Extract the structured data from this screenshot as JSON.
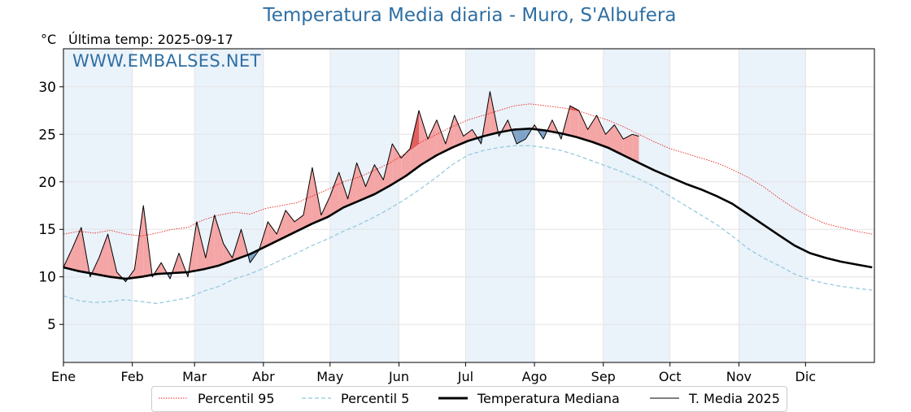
{
  "title": "Temperatura Media diaria - Muro, S'Albufera",
  "unit_label": "°C",
  "last_update": "Última temp: 2025-09-17",
  "watermark": "WWW.EMBALSES.NET",
  "legend": {
    "p95": "Percentil 95",
    "p5": "Percentil 5",
    "median": "Temperatura Mediana",
    "current": "T. Media 2025"
  },
  "colors": {
    "p95": "#e8281e",
    "p5": "#8fc8dc",
    "median": "#000000",
    "current": "#000000",
    "above_fill": "#f4a5a5",
    "above_strong": "#e06060",
    "below_fill": "#7fa3c8",
    "below_strong": "#2a5a90",
    "band": "#eaf2fa",
    "title": "#2f6fa3"
  },
  "chart_data": {
    "type": "line",
    "title": "Temperatura Media diaria - Muro, S'Albufera",
    "ylabel": "°C",
    "xlabel": "",
    "ylim": [
      1,
      34
    ],
    "xlim": [
      1,
      366
    ],
    "yticks": [
      5,
      10,
      15,
      20,
      25,
      30
    ],
    "month_ticks": [
      {
        "day": 1,
        "label": "Ene"
      },
      {
        "day": 32,
        "label": "Feb"
      },
      {
        "day": 60,
        "label": "Mar"
      },
      {
        "day": 91,
        "label": "Abr"
      },
      {
        "day": 121,
        "label": "May"
      },
      {
        "day": 152,
        "label": "Jun"
      },
      {
        "day": 182,
        "label": "Jul"
      },
      {
        "day": 213,
        "label": "Ago"
      },
      {
        "day": 244,
        "label": "Sep"
      },
      {
        "day": 274,
        "label": "Oct"
      },
      {
        "day": 305,
        "label": "Nov"
      },
      {
        "day": 335,
        "label": "Dic"
      }
    ],
    "alternating_month_shading": true,
    "grid": true,
    "legend_position": "bottom",
    "series": [
      {
        "name": "Percentil 95",
        "style": "dotted-red",
        "x": [
          1,
          8,
          15,
          22,
          29,
          36,
          43,
          50,
          57,
          64,
          71,
          78,
          85,
          92,
          99,
          106,
          113,
          120,
          127,
          134,
          141,
          148,
          155,
          162,
          169,
          176,
          183,
          190,
          197,
          204,
          211,
          218,
          225,
          232,
          239,
          246,
          253,
          260,
          267,
          274,
          281,
          288,
          295,
          302,
          309,
          316,
          323,
          330,
          337,
          344,
          351,
          358,
          365
        ],
        "y": [
          14.5,
          14.8,
          14.6,
          14.9,
          14.5,
          14.3,
          14.6,
          15.0,
          15.2,
          16.0,
          16.5,
          16.8,
          16.6,
          17.2,
          17.5,
          17.8,
          18.5,
          19.2,
          20.0,
          20.5,
          21.2,
          22.0,
          23.0,
          24.2,
          25.0,
          25.8,
          26.5,
          27.0,
          27.5,
          28.0,
          28.2,
          28.0,
          27.8,
          27.5,
          27.0,
          26.5,
          25.8,
          25.0,
          24.2,
          23.5,
          23.0,
          22.5,
          22.0,
          21.3,
          20.5,
          19.5,
          18.3,
          17.2,
          16.3,
          15.6,
          15.2,
          14.8,
          14.5
        ]
      },
      {
        "name": "Percentil 5",
        "style": "dashed-lightblue",
        "x": [
          1,
          8,
          15,
          22,
          29,
          36,
          43,
          50,
          57,
          64,
          71,
          78,
          85,
          92,
          99,
          106,
          113,
          120,
          127,
          134,
          141,
          148,
          155,
          162,
          169,
          176,
          183,
          190,
          197,
          204,
          211,
          218,
          225,
          232,
          239,
          246,
          253,
          260,
          267,
          274,
          281,
          288,
          295,
          302,
          309,
          316,
          323,
          330,
          337,
          344,
          351,
          358,
          365
        ],
        "y": [
          8.0,
          7.5,
          7.3,
          7.4,
          7.6,
          7.4,
          7.2,
          7.5,
          7.8,
          8.5,
          9.0,
          9.8,
          10.3,
          11.0,
          11.8,
          12.5,
          13.3,
          14.0,
          14.8,
          15.5,
          16.3,
          17.2,
          18.2,
          19.3,
          20.5,
          21.8,
          22.8,
          23.3,
          23.6,
          23.8,
          23.8,
          23.6,
          23.3,
          22.8,
          22.2,
          21.6,
          21.0,
          20.3,
          19.5,
          18.5,
          17.5,
          16.5,
          15.5,
          14.3,
          13.0,
          12.0,
          11.2,
          10.3,
          9.7,
          9.3,
          9.0,
          8.8,
          8.6
        ]
      },
      {
        "name": "Temperatura Mediana",
        "style": "thick-black",
        "x": [
          1,
          8,
          15,
          22,
          29,
          36,
          43,
          50,
          57,
          64,
          71,
          78,
          85,
          92,
          99,
          106,
          113,
          120,
          127,
          134,
          141,
          148,
          155,
          162,
          169,
          176,
          183,
          190,
          197,
          204,
          211,
          218,
          225,
          232,
          239,
          246,
          253,
          260,
          267,
          274,
          281,
          288,
          295,
          302,
          309,
          316,
          323,
          330,
          337,
          344,
          351,
          358,
          365
        ],
        "y": [
          11.0,
          10.6,
          10.3,
          10.0,
          9.8,
          10.0,
          10.3,
          10.4,
          10.5,
          10.8,
          11.2,
          11.8,
          12.4,
          13.2,
          14.0,
          14.8,
          15.6,
          16.3,
          17.3,
          18.0,
          18.7,
          19.6,
          20.6,
          21.8,
          22.8,
          23.6,
          24.3,
          24.8,
          25.2,
          25.5,
          25.6,
          25.4,
          25.1,
          24.7,
          24.2,
          23.6,
          22.8,
          22.0,
          21.2,
          20.5,
          19.8,
          19.2,
          18.5,
          17.7,
          16.6,
          15.5,
          14.4,
          13.3,
          12.5,
          12.0,
          11.6,
          11.3,
          11.0
        ]
      },
      {
        "name": "T. Media 2025",
        "style": "thin-black",
        "x": [
          1,
          5,
          9,
          13,
          17,
          21,
          25,
          29,
          33,
          37,
          41,
          45,
          49,
          53,
          57,
          61,
          65,
          69,
          73,
          77,
          81,
          85,
          89,
          93,
          97,
          101,
          105,
          109,
          113,
          117,
          121,
          125,
          129,
          133,
          137,
          141,
          145,
          149,
          153,
          157,
          161,
          165,
          169,
          173,
          177,
          181,
          185,
          189,
          193,
          197,
          201,
          205,
          209,
          213,
          217,
          221,
          225,
          229,
          233,
          237,
          241,
          245,
          249,
          253,
          257,
          260
        ],
        "y": [
          11.0,
          13.0,
          15.2,
          10.0,
          12.0,
          14.5,
          10.5,
          9.5,
          10.8,
          17.5,
          10.0,
          11.5,
          9.8,
          12.5,
          10.0,
          15.8,
          12.0,
          16.5,
          13.5,
          12.0,
          15.0,
          11.5,
          12.8,
          15.8,
          14.5,
          17.0,
          15.8,
          16.5,
          21.5,
          16.5,
          18.5,
          21.0,
          18.2,
          22.0,
          19.5,
          21.8,
          20.2,
          24.0,
          22.5,
          23.5,
          27.5,
          24.5,
          26.5,
          24.0,
          27.0,
          24.8,
          25.5,
          24.0,
          29.5,
          24.8,
          26.5,
          24.0,
          24.5,
          26.0,
          24.5,
          26.5,
          24.5,
          28.0,
          27.5,
          25.5,
          27.0,
          25.0,
          26.0,
          24.5,
          25.0,
          24.8
        ]
      }
    ]
  }
}
